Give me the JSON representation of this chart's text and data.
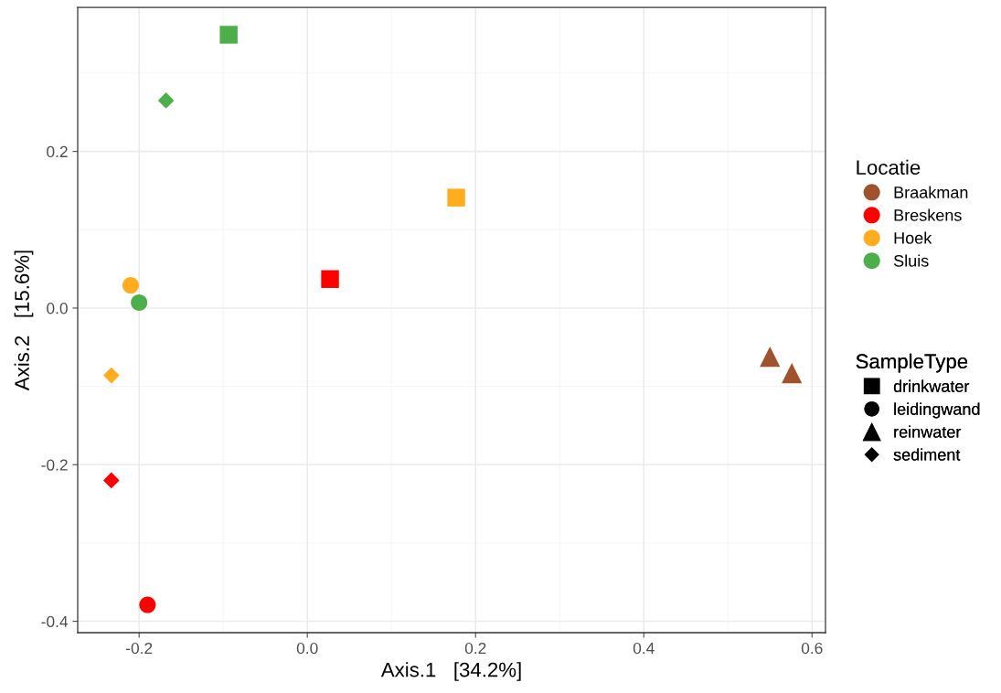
{
  "chart_data": {
    "type": "scatter",
    "xlabel": "Axis.1   [34.2%]",
    "ylabel": "Axis.2   [15.6%]",
    "xlim": [
      -0.273,
      0.616
    ],
    "ylim": [
      -0.4145,
      0.384
    ],
    "xticks": [
      {
        "value": -0.2,
        "label": "-0.2"
      },
      {
        "value": 0.0,
        "label": "0.0"
      },
      {
        "value": 0.2,
        "label": "0.2"
      },
      {
        "value": 0.4,
        "label": "0.4"
      },
      {
        "value": 0.6,
        "label": "0.6"
      }
    ],
    "yticks": [
      {
        "value": -0.4,
        "label": "-0.4"
      },
      {
        "value": -0.2,
        "label": "-0.2"
      },
      {
        "value": 0.0,
        "label": "0.0"
      },
      {
        "value": 0.2,
        "label": "0.2"
      }
    ],
    "grid": true,
    "legend": "right",
    "legend_title": [
      "Locatie",
      "SampleType"
    ],
    "series": [
      {
        "name": "Braakman",
        "color": "#a0522d",
        "x": [
          0.55,
          0.576
        ],
        "values": [
          -0.062,
          -0.083
        ],
        "marker": [
          "triangle",
          "triangle"
        ]
      },
      {
        "name": "Breskens",
        "color": "#ff0000",
        "x": [
          0.027,
          -0.233,
          -0.19
        ],
        "values": [
          0.037,
          -0.22,
          -0.379
        ],
        "marker": [
          "square",
          "diamond",
          "circle"
        ]
      },
      {
        "name": "Hoek",
        "color": "#ffad1f",
        "x": [
          0.177,
          -0.21,
          -0.233
        ],
        "values": [
          0.141,
          0.029,
          -0.086
        ],
        "marker": [
          "square",
          "circle",
          "diamond"
        ]
      },
      {
        "name": "Sluis",
        "color": "#4daf4a",
        "x": [
          -0.0935,
          -0.168,
          -0.2
        ],
        "values": [
          0.349,
          0.265,
          0.007
        ],
        "marker": [
          "square",
          "diamond",
          "circle"
        ]
      },
      {
        "name": "drinkwater",
        "color": "#000000",
        "marker": "square"
      },
      {
        "name": "leidingwand",
        "color": "#000000",
        "marker": "circle"
      },
      {
        "name": "reinwater",
        "color": "#000000",
        "marker": "triangle"
      },
      {
        "name": "sediment",
        "color": "#000000",
        "marker": "diamond"
      }
    ]
  }
}
